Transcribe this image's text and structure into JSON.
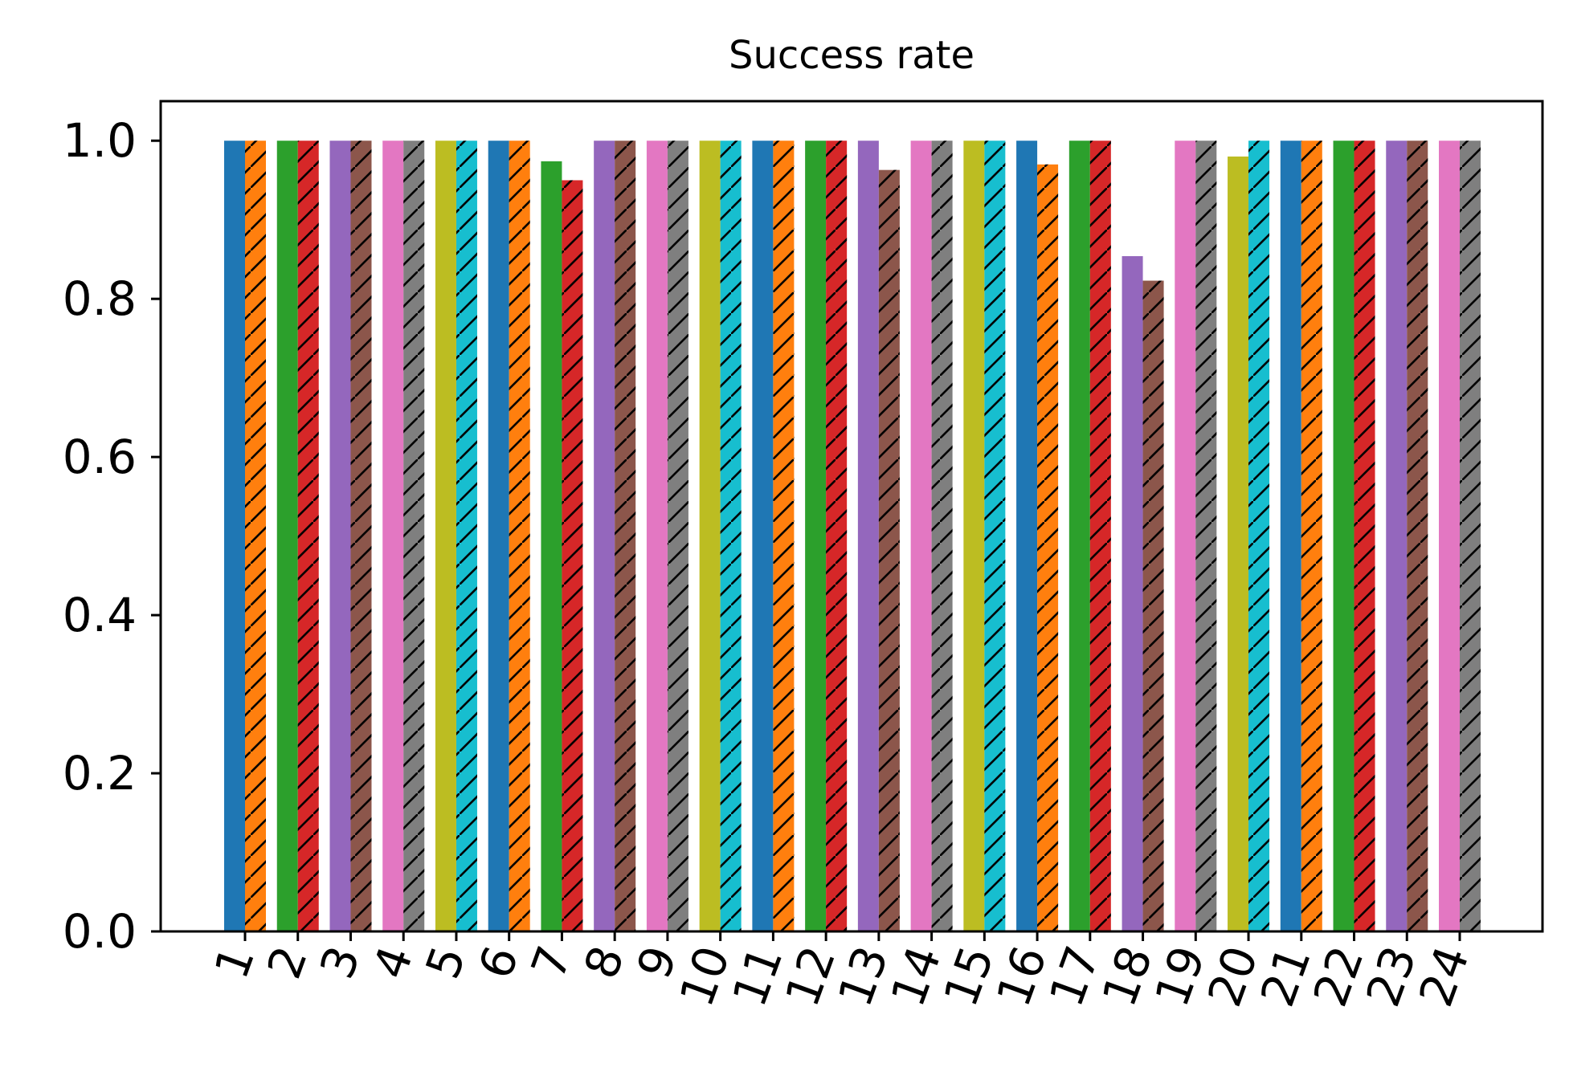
{
  "chart_data": {
    "type": "bar",
    "title": "Success rate",
    "xlabel": "",
    "ylabel": "",
    "ylim": [
      0,
      1.05
    ],
    "yticks": [
      "0.0",
      "0.2",
      "0.4",
      "0.6",
      "0.8",
      "1.0"
    ],
    "ytick_values": [
      0,
      0.2,
      0.4,
      0.6,
      0.8,
      1.0
    ],
    "categories": [
      "1",
      "2",
      "3",
      "4",
      "5",
      "6",
      "7",
      "8",
      "9",
      "10",
      "11",
      "12",
      "13",
      "14",
      "15",
      "16",
      "17",
      "18",
      "19",
      "20",
      "21",
      "22",
      "23",
      "24"
    ],
    "series": [
      {
        "hatch": "none",
        "values": [
          1.0,
          1.0,
          1.0,
          1.0,
          1.0,
          1.0,
          0.974,
          1.0,
          1.0,
          1.0,
          1.0,
          1.0,
          1.0,
          1.0,
          1.0,
          1.0,
          1.0,
          0.854,
          1.0,
          0.98,
          1.0,
          1.0,
          1.0,
          1.0
        ]
      },
      {
        "hatch": "diagonal",
        "values": [
          1.0,
          1.0,
          1.0,
          1.0,
          1.0,
          1.0,
          0.95,
          1.0,
          1.0,
          1.0,
          1.0,
          1.0,
          0.963,
          1.0,
          1.0,
          0.97,
          1.0,
          0.823,
          1.0,
          1.0,
          1.0,
          1.0,
          1.0,
          1.0
        ]
      }
    ],
    "color_cycle": [
      "#1f77b4",
      "#ff7f0e",
      "#2ca02c",
      "#d62728",
      "#9467bd",
      "#8c564b",
      "#e377c2",
      "#7f7f7f",
      "#bcbd22",
      "#17becf"
    ],
    "xtick_rotation": -70,
    "grid": false,
    "legend": "none"
  }
}
